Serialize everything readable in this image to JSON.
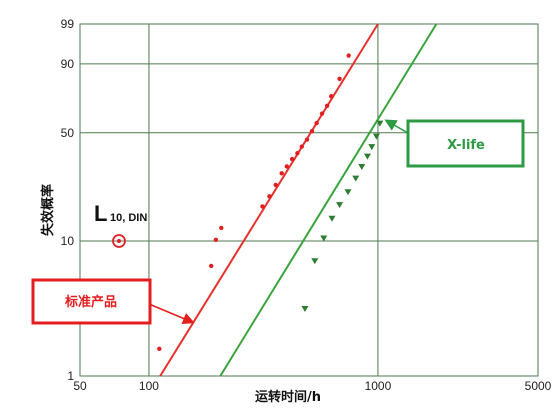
{
  "chart_data": {
    "type": "scatter",
    "x_scale": "log",
    "y_scale": "weibull-probability",
    "xlim": [
      50,
      5000
    ],
    "ylim": [
      1,
      99
    ],
    "xlabel": "运转时间/h",
    "ylabel": "失效概率",
    "x_ticks": [
      "50",
      "100",
      "1000",
      "5000"
    ],
    "y_ticks": [
      "1",
      "10",
      "50",
      "90",
      "99"
    ],
    "x_tick_values": [
      50,
      100,
      1000,
      5000
    ],
    "y_tick_values": [
      1,
      10,
      50,
      90,
      99
    ],
    "grid": true,
    "marker_label": {
      "main": "L",
      "sub": "10, DIN",
      "x": 74,
      "y": 10,
      "color": "#e02020"
    },
    "series": [
      {
        "name": "标准产品",
        "color": "#e02020",
        "line_color": "#e8302c",
        "box_color": "#e41e1e",
        "marker": "dot",
        "points": [
          {
            "x": 111,
            "y": 1.6
          },
          {
            "x": 187,
            "y": 6.6
          },
          {
            "x": 196,
            "y": 10.2
          },
          {
            "x": 207,
            "y": 12.4
          },
          {
            "x": 313,
            "y": 17.5
          },
          {
            "x": 336,
            "y": 20.5
          },
          {
            "x": 358,
            "y": 24.4
          },
          {
            "x": 380,
            "y": 29
          },
          {
            "x": 400,
            "y": 32
          },
          {
            "x": 422,
            "y": 35.5
          },
          {
            "x": 445,
            "y": 38.5
          },
          {
            "x": 465,
            "y": 42
          },
          {
            "x": 490,
            "y": 46
          },
          {
            "x": 515,
            "y": 51
          },
          {
            "x": 540,
            "y": 56
          },
          {
            "x": 570,
            "y": 62
          },
          {
            "x": 600,
            "y": 67
          },
          {
            "x": 625,
            "y": 73
          },
          {
            "x": 680,
            "y": 83
          },
          {
            "x": 745,
            "y": 93
          }
        ],
        "fit": [
          {
            "x": 112,
            "y": 1
          },
          {
            "x": 1000,
            "y": 99
          }
        ]
      },
      {
        "name": "X-life",
        "color": "#2e7d32",
        "line_color": "#3aa33a",
        "box_color": "#2e9a44",
        "marker": "triangle",
        "points": [
          {
            "x": 480,
            "y": 3.2
          },
          {
            "x": 530,
            "y": 7.2
          },
          {
            "x": 580,
            "y": 10.5
          },
          {
            "x": 630,
            "y": 14.5
          },
          {
            "x": 680,
            "y": 18
          },
          {
            "x": 740,
            "y": 22
          },
          {
            "x": 800,
            "y": 27
          },
          {
            "x": 850,
            "y": 32
          },
          {
            "x": 900,
            "y": 37
          },
          {
            "x": 940,
            "y": 42
          },
          {
            "x": 985,
            "y": 48
          },
          {
            "x": 1020,
            "y": 56
          }
        ],
        "fit": [
          {
            "x": 205,
            "y": 1
          },
          {
            "x": 1800,
            "y": 99
          }
        ]
      }
    ]
  }
}
